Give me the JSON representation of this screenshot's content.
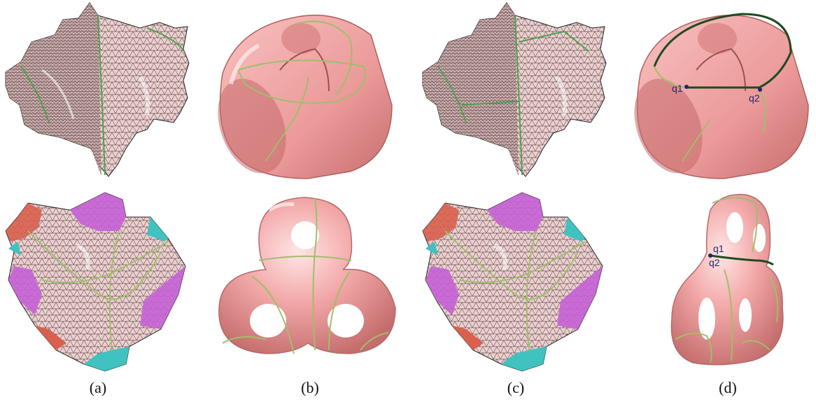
{
  "figure": {
    "captions": [
      "(a)",
      "(b)",
      "(c)",
      "(d)"
    ],
    "points": {
      "top_d": [
        "q1",
        "q2"
      ],
      "bottom_d": [
        "q1",
        "q2"
      ]
    }
  },
  "colors": {
    "mesh_fill": "#e9c8c8",
    "mesh_line": "#3a2626",
    "surface": "#f0a3a3",
    "surface_dark": "#c96f6f",
    "cut_light": "#9fbf6a",
    "cut_dark": "#1f4a1f",
    "region_magenta": "#c760d6",
    "region_red": "#d9604f",
    "region_cyan": "#3fc2c0",
    "point_label": "#1a2a6e"
  }
}
